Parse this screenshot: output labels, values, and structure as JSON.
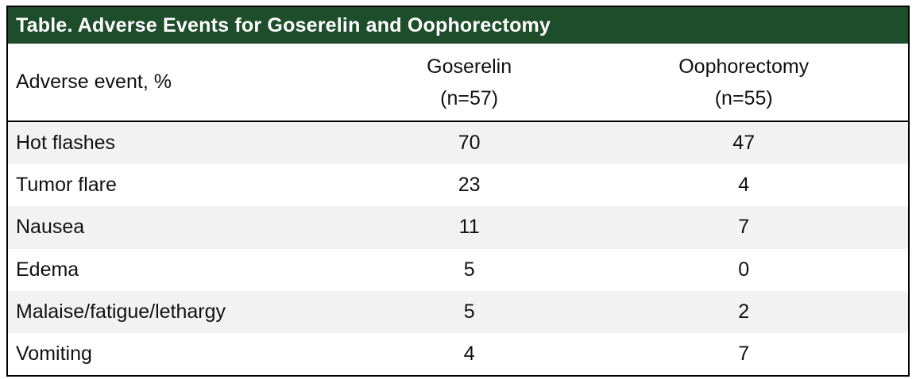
{
  "colors": {
    "header-green": "#1E4D2C",
    "stripe-gray": "#F2F2F2",
    "border-black": "#000000",
    "text-dark": "#111111",
    "title-text": "#FFFFFF"
  },
  "table": {
    "title": "Table. Adverse Events for Goserelin and Oophorectomy",
    "header": {
      "event_label": "Adverse event, %",
      "group1_name": "Goserelin",
      "group1_n": "(n=57)",
      "group2_name": "Oophorectomy",
      "group2_n": "(n=55)"
    },
    "rows": [
      {
        "event": "Hot flashes",
        "goserelin": "70",
        "oophorectomy": "47"
      },
      {
        "event": "Tumor flare",
        "goserelin": "23",
        "oophorectomy": "4"
      },
      {
        "event": "Nausea",
        "goserelin": "11",
        "oophorectomy": "7"
      },
      {
        "event": "Edema",
        "goserelin": "5",
        "oophorectomy": "0"
      },
      {
        "event": "Malaise/fatigue/lethargy",
        "goserelin": "5",
        "oophorectomy": "2"
      },
      {
        "event": "Vomiting",
        "goserelin": "4",
        "oophorectomy": "7"
      }
    ]
  },
  "chart_data": {
    "type": "table",
    "title": "Table. Adverse Events for Goserelin and Oophorectomy",
    "columns": [
      "Adverse event, %",
      "Goserelin (n=57)",
      "Oophorectomy (n=55)"
    ],
    "rows": [
      [
        "Hot flashes",
        70,
        47
      ],
      [
        "Tumor flare",
        23,
        4
      ],
      [
        "Nausea",
        11,
        7
      ],
      [
        "Edema",
        5,
        0
      ],
      [
        "Malaise/fatigue/lethargy",
        5,
        2
      ],
      [
        "Vomiting",
        4,
        7
      ]
    ]
  }
}
